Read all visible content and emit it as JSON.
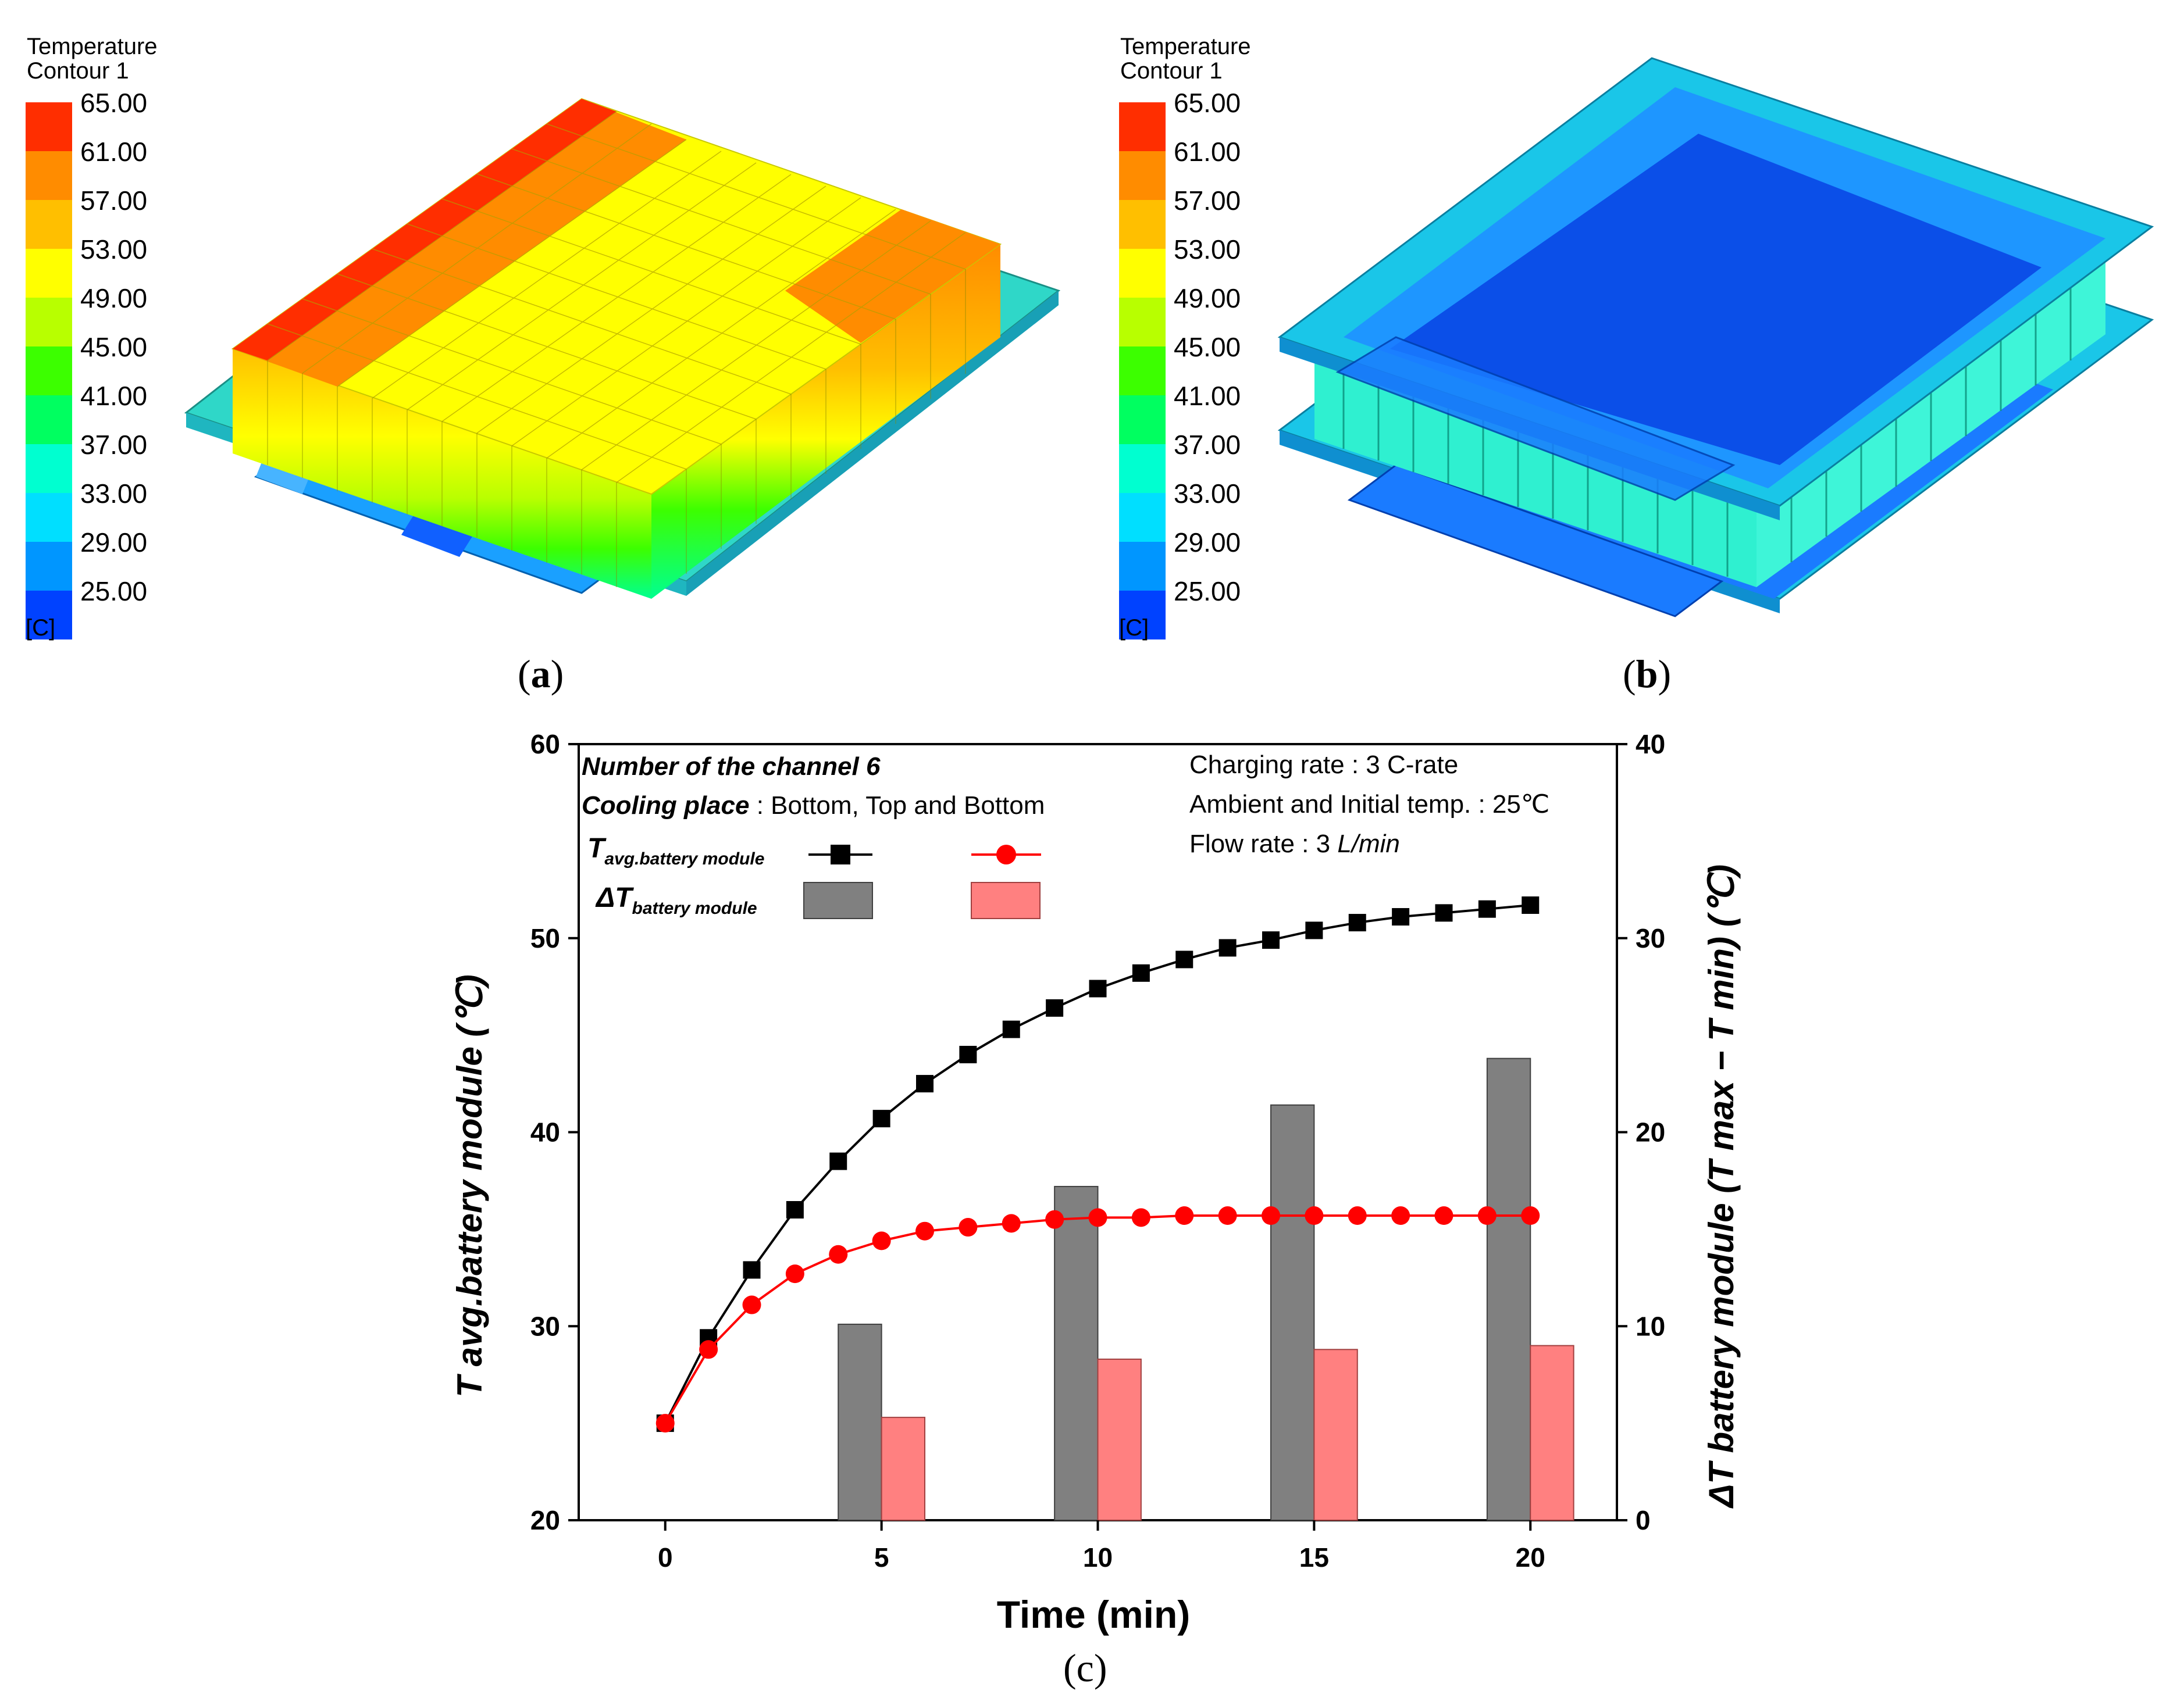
{
  "panels": {
    "a": {
      "label": "a",
      "legend": {
        "title_line1": "Temperature",
        "title_line2": "Contour 1",
        "levels": [
          "65.00",
          "61.00",
          "57.00",
          "53.00",
          "49.00",
          "45.00",
          "41.00",
          "37.00",
          "33.00",
          "29.00",
          "25.00"
        ],
        "colors": [
          "#ff2e00",
          "#ff8c00",
          "#ffbf00",
          "#ffff00",
          "#b8ff00",
          "#3cff00",
          "#00ff60",
          "#00ffd0",
          "#00dfff",
          "#0096ff",
          "#0042ff"
        ],
        "unit": "[C]"
      }
    },
    "b": {
      "label": "b",
      "legend": {
        "title_line1": "Temperature",
        "title_line2": "Contour 1",
        "levels": [
          "65.00",
          "61.00",
          "57.00",
          "53.00",
          "49.00",
          "45.00",
          "41.00",
          "37.00",
          "33.00",
          "29.00",
          "25.00"
        ],
        "colors": [
          "#ff2e00",
          "#ff8c00",
          "#ffbf00",
          "#ffff00",
          "#b8ff00",
          "#3cff00",
          "#00ff60",
          "#00ffd0",
          "#00dfff",
          "#0096ff",
          "#0042ff"
        ],
        "unit": "[C]"
      }
    },
    "c": {
      "label": "c"
    }
  },
  "chart_data": {
    "type": "line",
    "xlabel": "Time (min)",
    "ylabel_left": "T avg.battery module (℃)",
    "ylabel_right": "ΔT battery module (T max − T min) (℃)",
    "xlim": [
      -2,
      22
    ],
    "ylim_left": [
      20,
      60
    ],
    "ylim_right": [
      0,
      40
    ],
    "xticks": [
      0,
      5,
      10,
      15,
      20
    ],
    "yticks_left": [
      20,
      30,
      40,
      50,
      60
    ],
    "yticks_right": [
      0,
      10,
      20,
      30,
      40
    ],
    "annotations": {
      "line1_prefix": "Number of the channel 6",
      "line2_italic": "Cooling place",
      "line2_rest": " : Bottom, Top and Bottom",
      "right1": "Charging rate : 3 C-rate",
      "right2": "Ambient and Initial temp. : 25℃",
      "right3_prefix": "Flow rate : 3 ",
      "right3_unit": "L/min"
    },
    "legend": {
      "tavg_main": "T",
      "tavg_sub": "avg.battery module",
      "dt_main": "ΔT",
      "dt_sub": "battery module"
    },
    "series": [
      {
        "name": "T avg.battery module (black)",
        "axis": "left",
        "color": "#000000",
        "marker": "square",
        "x": [
          0,
          1,
          2,
          3,
          4,
          5,
          6,
          7,
          8,
          9,
          10,
          11,
          12,
          13,
          14,
          15,
          16,
          17,
          18,
          19,
          20
        ],
        "values": [
          25.0,
          29.4,
          32.9,
          36.0,
          38.5,
          40.7,
          42.5,
          44.0,
          45.3,
          46.4,
          47.4,
          48.2,
          48.9,
          49.5,
          49.9,
          50.4,
          50.8,
          51.1,
          51.3,
          51.5,
          51.7
        ]
      },
      {
        "name": "T avg.battery module (red)",
        "axis": "left",
        "color": "#ff0000",
        "marker": "circle",
        "x": [
          0,
          1,
          2,
          3,
          4,
          5,
          6,
          7,
          8,
          9,
          10,
          11,
          12,
          13,
          14,
          15,
          16,
          17,
          18,
          19,
          20
        ],
        "values": [
          25.0,
          28.8,
          31.1,
          32.7,
          33.7,
          34.4,
          34.9,
          35.1,
          35.3,
          35.5,
          35.6,
          35.6,
          35.7,
          35.7,
          35.7,
          35.7,
          35.7,
          35.7,
          35.7,
          35.7,
          35.7
        ]
      },
      {
        "name": "ΔT battery module (gray bars)",
        "axis": "right",
        "type": "bar",
        "color": "#808080",
        "x": [
          5,
          10,
          15,
          20
        ],
        "values": [
          10.1,
          17.2,
          21.4,
          23.8
        ]
      },
      {
        "name": "ΔT battery module (pink bars)",
        "axis": "right",
        "type": "bar",
        "color": "#ff8080",
        "x": [
          5,
          10,
          15,
          20
        ],
        "values": [
          5.3,
          8.3,
          8.8,
          9.0
        ]
      }
    ]
  }
}
